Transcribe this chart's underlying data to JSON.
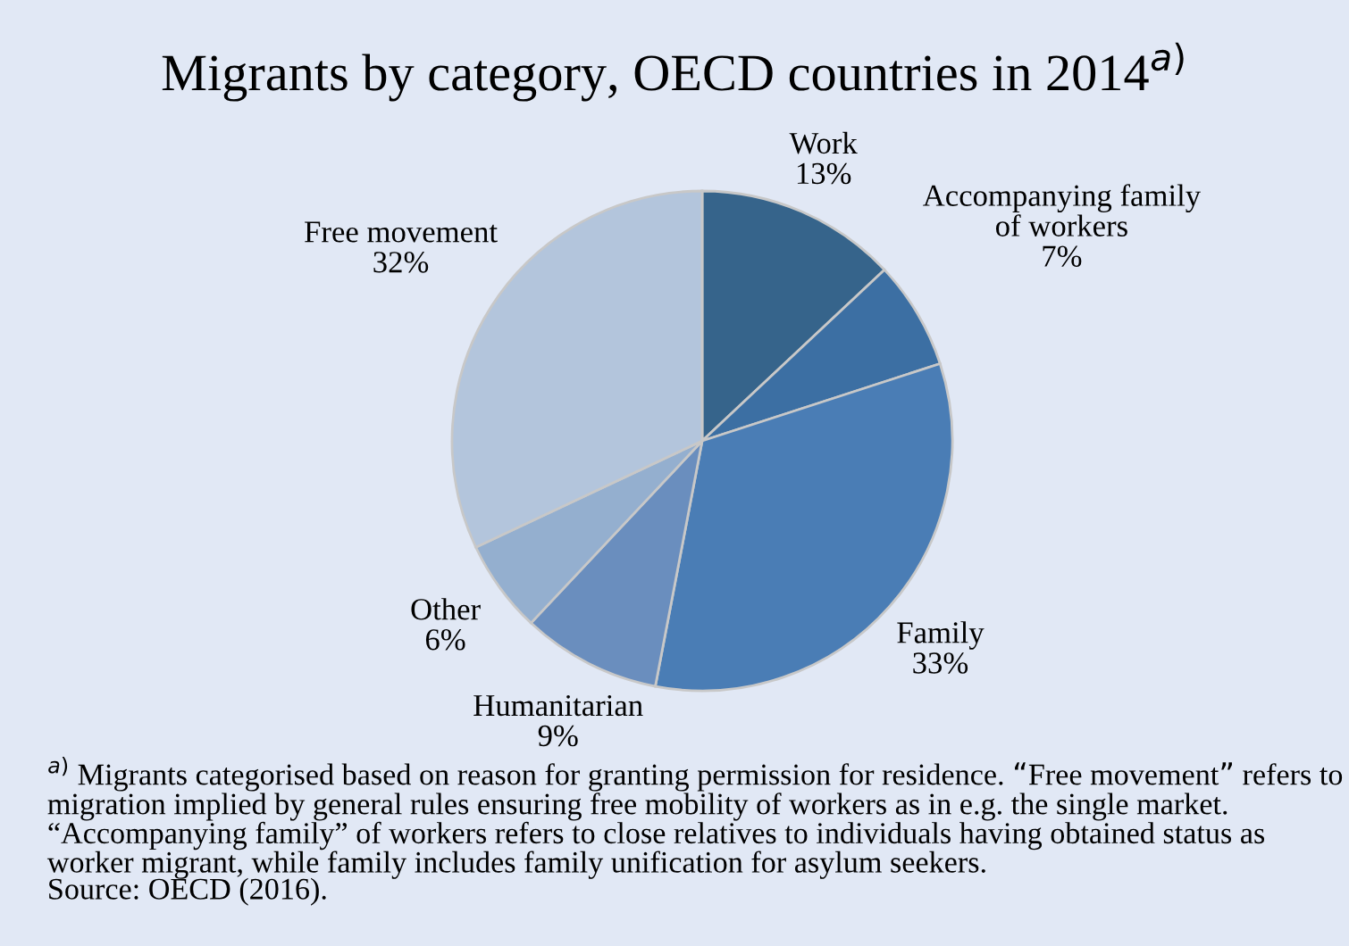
{
  "chart_data": {
    "type": "pie",
    "title": "Migrants by category, OECD countries in 2014$^{a)}$",
    "categories": [
      "Work",
      "Accompanying family\nof workers",
      "Family",
      "Humanitarian",
      "Other",
      "Free movement"
    ],
    "values": [
      13,
      7,
      33,
      9,
      6,
      32
    ],
    "value_labels": [
      "13%",
      "7%",
      "33%",
      "9%",
      "6%",
      "32%"
    ],
    "colors": [
      "#36648b",
      "#3c6fa3",
      "#4a7db5",
      "#6a8ebe",
      "#94afcf",
      "#b3c5dc"
    ],
    "annotations": [
      "$^{a)}$ Migrants categorised based on reason for granting permission for residence. “Free movement” refers to migration implied by general rules ensuring free mobility of workers as in e.g. the single market. “Accompanying family” of workers refers to close relatives to individuals having obtained status as worker migrant, while family includes family unification for asylum seekers.",
      "Source: OECD (2016)."
    ]
  }
}
